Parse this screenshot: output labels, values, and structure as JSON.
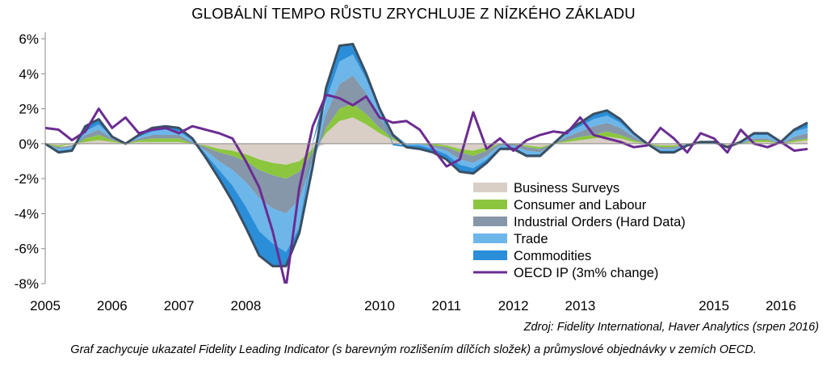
{
  "chart_data": {
    "type": "area",
    "title": "GLOBÁLNÍ TEMPO RŮSTU ZRYCHLUJE Z NÍZKÉHO ZÁKLADU",
    "xlabel": "",
    "ylabel": "",
    "xlim": [
      2005.0,
      2016.4
    ],
    "ylim": [
      -8,
      6
    ],
    "y_ticks": [
      6,
      4,
      2,
      0,
      -2,
      -4,
      -6,
      -8
    ],
    "y_tick_labels": [
      "6%",
      "4%",
      "2%",
      "0%",
      "-2%",
      "-4%",
      "-6%",
      "-8%"
    ],
    "x_ticks": [
      2005,
      2006,
      2007,
      2008,
      2010,
      2011,
      2012,
      2013,
      2015,
      2016
    ],
    "x_tick_labels": [
      "2005",
      "2006",
      "2007",
      "2008",
      "2010",
      "2011",
      "2012",
      "2013",
      "2015",
      "2016"
    ],
    "grid": false,
    "legend_position": "bottom-right",
    "colors": {
      "business_surveys": "#d9cfc6",
      "consumer_labour": "#8cc63f",
      "industrial_orders": "#8597a8",
      "trade": "#6cb6ea",
      "commodities": "#2b8ed8",
      "oecd_ip": "#6b2c91",
      "fli_line": "#3a4f63"
    },
    "x": [
      2005.0,
      2005.2,
      2005.4,
      2005.6,
      2005.8,
      2006.0,
      2006.2,
      2006.4,
      2006.6,
      2006.8,
      2007.0,
      2007.2,
      2007.4,
      2007.6,
      2007.8,
      2008.0,
      2008.2,
      2008.4,
      2008.6,
      2008.8,
      2009.0,
      2009.2,
      2009.4,
      2009.6,
      2009.8,
      2010.0,
      2010.2,
      2010.4,
      2010.6,
      2010.8,
      2011.0,
      2011.2,
      2011.4,
      2011.6,
      2011.8,
      2012.0,
      2012.2,
      2012.4,
      2012.6,
      2012.8,
      2013.0,
      2013.2,
      2013.4,
      2013.6,
      2013.8,
      2014.0,
      2014.2,
      2014.4,
      2014.6,
      2014.8,
      2015.0,
      2015.2,
      2015.4,
      2015.6,
      2015.8,
      2016.0,
      2016.2,
      2016.4
    ],
    "series": [
      {
        "name": "Business Surveys",
        "values": [
          0.0,
          -0.1,
          -0.1,
          0.1,
          0.2,
          0.1,
          0.0,
          0.1,
          0.1,
          0.1,
          0.1,
          0.0,
          -0.1,
          -0.3,
          -0.4,
          -0.6,
          -0.9,
          -1.1,
          -1.2,
          -1.0,
          -0.3,
          0.6,
          1.3,
          1.5,
          1.1,
          0.6,
          0.2,
          0.0,
          0.0,
          0.0,
          -0.1,
          -0.3,
          -0.4,
          -0.2,
          0.0,
          0.0,
          -0.1,
          -0.2,
          0.0,
          0.1,
          0.2,
          0.3,
          0.4,
          0.3,
          0.1,
          0.0,
          -0.1,
          -0.1,
          0.0,
          0.0,
          0.0,
          -0.1,
          0.0,
          0.1,
          0.1,
          0.0,
          0.1,
          0.2
        ]
      },
      {
        "name": "Consumer and Labour",
        "values": [
          0.0,
          -0.1,
          0.0,
          0.2,
          0.3,
          0.1,
          0.0,
          0.1,
          0.2,
          0.2,
          0.2,
          0.0,
          -0.1,
          -0.2,
          -0.3,
          -0.4,
          -0.6,
          -0.7,
          -0.8,
          -0.6,
          -0.2,
          0.3,
          0.7,
          0.8,
          0.6,
          0.3,
          0.1,
          0.0,
          0.0,
          -0.1,
          -0.1,
          -0.2,
          -0.3,
          -0.2,
          0.0,
          0.0,
          -0.1,
          -0.1,
          0.0,
          0.1,
          0.2,
          0.2,
          0.3,
          0.2,
          0.1,
          0.0,
          -0.1,
          -0.1,
          0.0,
          0.0,
          0.0,
          -0.1,
          0.0,
          0.1,
          0.1,
          0.0,
          0.1,
          0.1
        ]
      },
      {
        "name": "Industrial Orders (Hard Data)",
        "values": [
          0.0,
          -0.1,
          -0.1,
          0.2,
          0.3,
          0.1,
          0.0,
          0.1,
          0.2,
          0.2,
          0.2,
          0.1,
          -0.2,
          -0.5,
          -0.8,
          -1.2,
          -1.6,
          -1.9,
          -2.0,
          -1.6,
          -0.5,
          0.8,
          1.4,
          1.6,
          1.2,
          0.6,
          0.2,
          0.0,
          0.0,
          -0.1,
          -0.2,
          -0.4,
          -0.4,
          -0.3,
          -0.1,
          -0.1,
          -0.2,
          -0.2,
          0.0,
          0.2,
          0.3,
          0.5,
          0.5,
          0.4,
          0.2,
          0.0,
          -0.1,
          -0.1,
          0.0,
          0.0,
          0.0,
          0.0,
          0.0,
          0.1,
          0.1,
          0.0,
          0.2,
          0.3
        ]
      },
      {
        "name": "Trade",
        "values": [
          0.0,
          -0.1,
          -0.1,
          0.2,
          0.3,
          0.1,
          0.0,
          0.1,
          0.2,
          0.3,
          0.2,
          0.1,
          -0.2,
          -0.5,
          -0.9,
          -1.4,
          -1.9,
          -2.0,
          -2.2,
          -1.6,
          -0.4,
          0.8,
          1.3,
          1.2,
          0.8,
          0.4,
          0.1,
          -0.1,
          -0.1,
          -0.1,
          -0.2,
          -0.3,
          -0.3,
          -0.2,
          -0.1,
          -0.1,
          -0.2,
          -0.1,
          0.0,
          0.2,
          0.3,
          0.4,
          0.4,
          0.3,
          0.1,
          0.0,
          -0.1,
          -0.1,
          0.0,
          0.1,
          0.1,
          0.0,
          0.1,
          0.2,
          0.2,
          0.1,
          0.3,
          0.3
        ]
      },
      {
        "name": "Commodities",
        "values": [
          0.0,
          -0.1,
          -0.1,
          0.3,
          0.3,
          0.0,
          0.0,
          0.1,
          0.2,
          0.2,
          0.2,
          0.1,
          -0.2,
          -0.5,
          -0.9,
          -1.2,
          -1.4,
          -1.3,
          -0.8,
          -0.3,
          0.1,
          0.7,
          0.9,
          0.6,
          0.3,
          0.1,
          -0.1,
          -0.1,
          -0.2,
          -0.2,
          -0.3,
          -0.4,
          -0.3,
          -0.2,
          -0.1,
          -0.1,
          -0.1,
          -0.1,
          0.0,
          0.1,
          0.2,
          0.3,
          0.3,
          0.2,
          0.1,
          0.0,
          -0.1,
          -0.1,
          -0.1,
          0.0,
          0.0,
          0.0,
          0.0,
          0.1,
          0.1,
          0.0,
          0.1,
          0.3
        ]
      },
      {
        "name": "OECD IP (3m% change)",
        "values": [
          0.9,
          0.8,
          0.2,
          0.7,
          2.0,
          0.9,
          1.5,
          0.6,
          0.8,
          0.9,
          0.6,
          1.0,
          0.8,
          0.6,
          0.3,
          -1.0,
          -2.5,
          -5.0,
          -8.2,
          -2.5,
          1.0,
          2.8,
          2.6,
          2.2,
          2.7,
          1.5,
          1.2,
          1.3,
          0.8,
          -0.3,
          -1.3,
          -0.9,
          1.8,
          -0.3,
          0.3,
          -0.4,
          0.2,
          0.5,
          0.7,
          0.6,
          1.5,
          0.5,
          0.3,
          0.1,
          -0.2,
          -0.1,
          0.9,
          0.3,
          -0.5,
          0.6,
          0.3,
          -0.5,
          0.8,
          0.0,
          -0.2,
          0.1,
          -0.4,
          -0.3
        ]
      }
    ]
  },
  "source": "Zdroj: Fidelity International, Haver Analytics (srpen 2016)",
  "caption": "Graf zachycuje ukazatel Fidelity Leading Indicator (s barevným rozlišením dílčích složek) a průmyslové objednávky v zemích OECD."
}
